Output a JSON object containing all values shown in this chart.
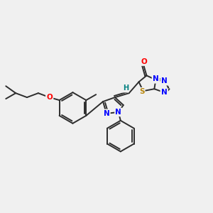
{
  "bg_color": "#f0f0f0",
  "bond_color": "#2d2d2d",
  "atom_colors": {
    "O": "#ff0000",
    "N": "#0000ff",
    "S": "#b8860b",
    "H": "#008080",
    "C": "#2d2d2d"
  },
  "figsize": [
    3.0,
    3.0
  ],
  "dpi": 100,
  "scale": 1.0
}
